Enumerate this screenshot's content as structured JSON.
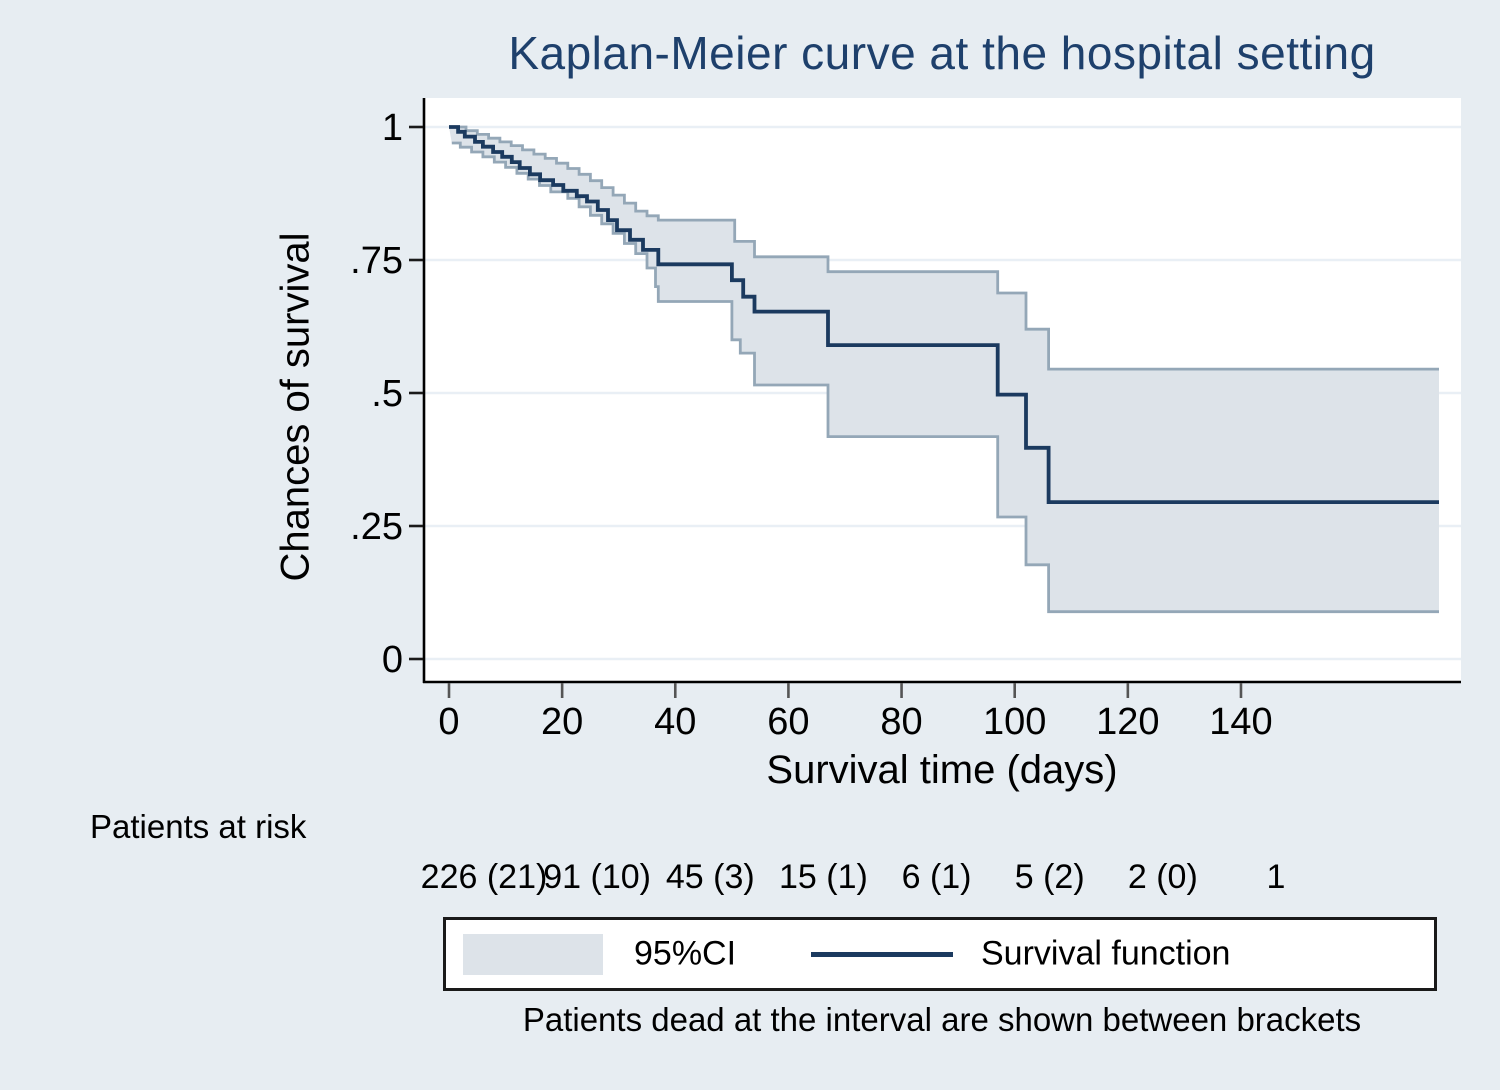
{
  "title": "Kaplan-Meier curve at the hospital setting",
  "colors": {
    "background": "#e7edf2",
    "plot_background": "#ffffff",
    "gridline": "#e9eff5",
    "axis_line": "#000000",
    "x_tick": "#555555",
    "y_tick": "#1a1a1a",
    "title_text": "#1e406c",
    "survival_line": "#1b3a5f",
    "ci_fill": "#dde3e9",
    "ci_border": "#94a7b7",
    "text": "#000000"
  },
  "chart_data": {
    "type": "line",
    "subtype": "kaplan-meier-step",
    "title": "Kaplan-Meier curve at the hospital setting",
    "xlabel": "Survival time (days)",
    "ylabel": "Chances of survival",
    "xlim": [
      -4.6,
      178.8
    ],
    "ylim": [
      -0.043,
      1.055
    ],
    "grid": "horizontal-only",
    "legend_position": "bottom",
    "x_ticks": [
      {
        "t": 0,
        "label": "0"
      },
      {
        "t": 20,
        "label": "20"
      },
      {
        "t": 40,
        "label": "40"
      },
      {
        "t": 60,
        "label": "60"
      },
      {
        "t": 80,
        "label": "80"
      },
      {
        "t": 100,
        "label": "100"
      },
      {
        "t": 120,
        "label": "120"
      },
      {
        "t": 140,
        "label": "140"
      }
    ],
    "y_ticks": [
      {
        "v": 1,
        "label": "1"
      },
      {
        "v": 0.75,
        "label": ".75"
      },
      {
        "v": 0.5,
        "label": ".5"
      },
      {
        "v": 0.25,
        "label": ".25"
      },
      {
        "v": 0,
        "label": "0"
      }
    ],
    "end_time": 175,
    "series": [
      {
        "name": "Survival function",
        "role": "estimate",
        "points": [
          [
            0,
            1
          ],
          [
            1.6,
            0.991
          ],
          [
            2.8,
            0.982
          ],
          [
            4.6,
            0.972
          ],
          [
            6,
            0.963
          ],
          [
            7.8,
            0.953
          ],
          [
            9.4,
            0.944
          ],
          [
            11.1,
            0.934
          ],
          [
            12.5,
            0.923
          ],
          [
            14.3,
            0.911
          ],
          [
            16.1,
            0.9
          ],
          [
            18.4,
            0.891
          ],
          [
            20.2,
            0.88
          ],
          [
            22.6,
            0.87
          ],
          [
            24.4,
            0.86
          ],
          [
            26.3,
            0.844
          ],
          [
            28.1,
            0.825
          ],
          [
            29.7,
            0.806
          ],
          [
            32,
            0.788
          ],
          [
            34.3,
            0.769
          ],
          [
            37,
            0.742
          ],
          [
            50,
            0.712
          ],
          [
            52,
            0.681
          ],
          [
            54,
            0.653
          ],
          [
            67,
            0.59
          ],
          [
            97,
            0.497
          ],
          [
            102,
            0.397
          ],
          [
            106,
            0.295
          ]
        ]
      },
      {
        "name": "95%CI upper",
        "role": "ci-upper",
        "points": [
          [
            0,
            1
          ],
          [
            3,
            0.993
          ],
          [
            5,
            0.986
          ],
          [
            7,
            0.979
          ],
          [
            9,
            0.972
          ],
          [
            11,
            0.965
          ],
          [
            13,
            0.957
          ],
          [
            15,
            0.949
          ],
          [
            17,
            0.941
          ],
          [
            19,
            0.932
          ],
          [
            21,
            0.922
          ],
          [
            23,
            0.911
          ],
          [
            25,
            0.899
          ],
          [
            27,
            0.886
          ],
          [
            29,
            0.872
          ],
          [
            31,
            0.857
          ],
          [
            33,
            0.842
          ],
          [
            35,
            0.833
          ],
          [
            37,
            0.825
          ],
          [
            50.5,
            0.785
          ],
          [
            54,
            0.756
          ],
          [
            67,
            0.728
          ],
          [
            97,
            0.688
          ],
          [
            102,
            0.62
          ],
          [
            106,
            0.545
          ]
        ]
      },
      {
        "name": "95%CI lower",
        "role": "ci-lower",
        "points": [
          [
            0.5,
            0.97
          ],
          [
            2,
            0.962
          ],
          [
            4,
            0.953
          ],
          [
            6,
            0.944
          ],
          [
            8,
            0.934
          ],
          [
            10,
            0.924
          ],
          [
            12,
            0.913
          ],
          [
            14,
            0.902
          ],
          [
            16,
            0.89
          ],
          [
            18,
            0.878
          ],
          [
            21,
            0.866
          ],
          [
            23,
            0.85
          ],
          [
            25,
            0.834
          ],
          [
            27,
            0.818
          ],
          [
            29,
            0.8
          ],
          [
            31,
            0.781
          ],
          [
            33,
            0.762
          ],
          [
            35,
            0.735
          ],
          [
            36.5,
            0.7
          ],
          [
            37,
            0.672
          ],
          [
            50,
            0.6
          ],
          [
            51.5,
            0.575
          ],
          [
            54,
            0.515
          ],
          [
            67,
            0.418
          ],
          [
            97,
            0.267
          ],
          [
            102,
            0.177
          ],
          [
            106,
            0.089
          ]
        ]
      }
    ]
  },
  "risk_table": {
    "label": "Patients at risk",
    "values": [
      {
        "time": 0,
        "label": "226 (21)"
      },
      {
        "time": 20,
        "label": "91 (10)"
      },
      {
        "time": 40,
        "label": "45 (3)"
      },
      {
        "time": 60,
        "label": "15 (1)"
      },
      {
        "time": 80,
        "label": "6 (1)"
      },
      {
        "time": 100,
        "label": "5 (2)"
      },
      {
        "time": 120,
        "label": "2 (0)"
      },
      {
        "time": 140,
        "label": "1"
      }
    ]
  },
  "legend": {
    "ci_label": "95%CI",
    "line_label": "Survival function"
  },
  "caption": "Patients dead at the interval are shown between brackets"
}
